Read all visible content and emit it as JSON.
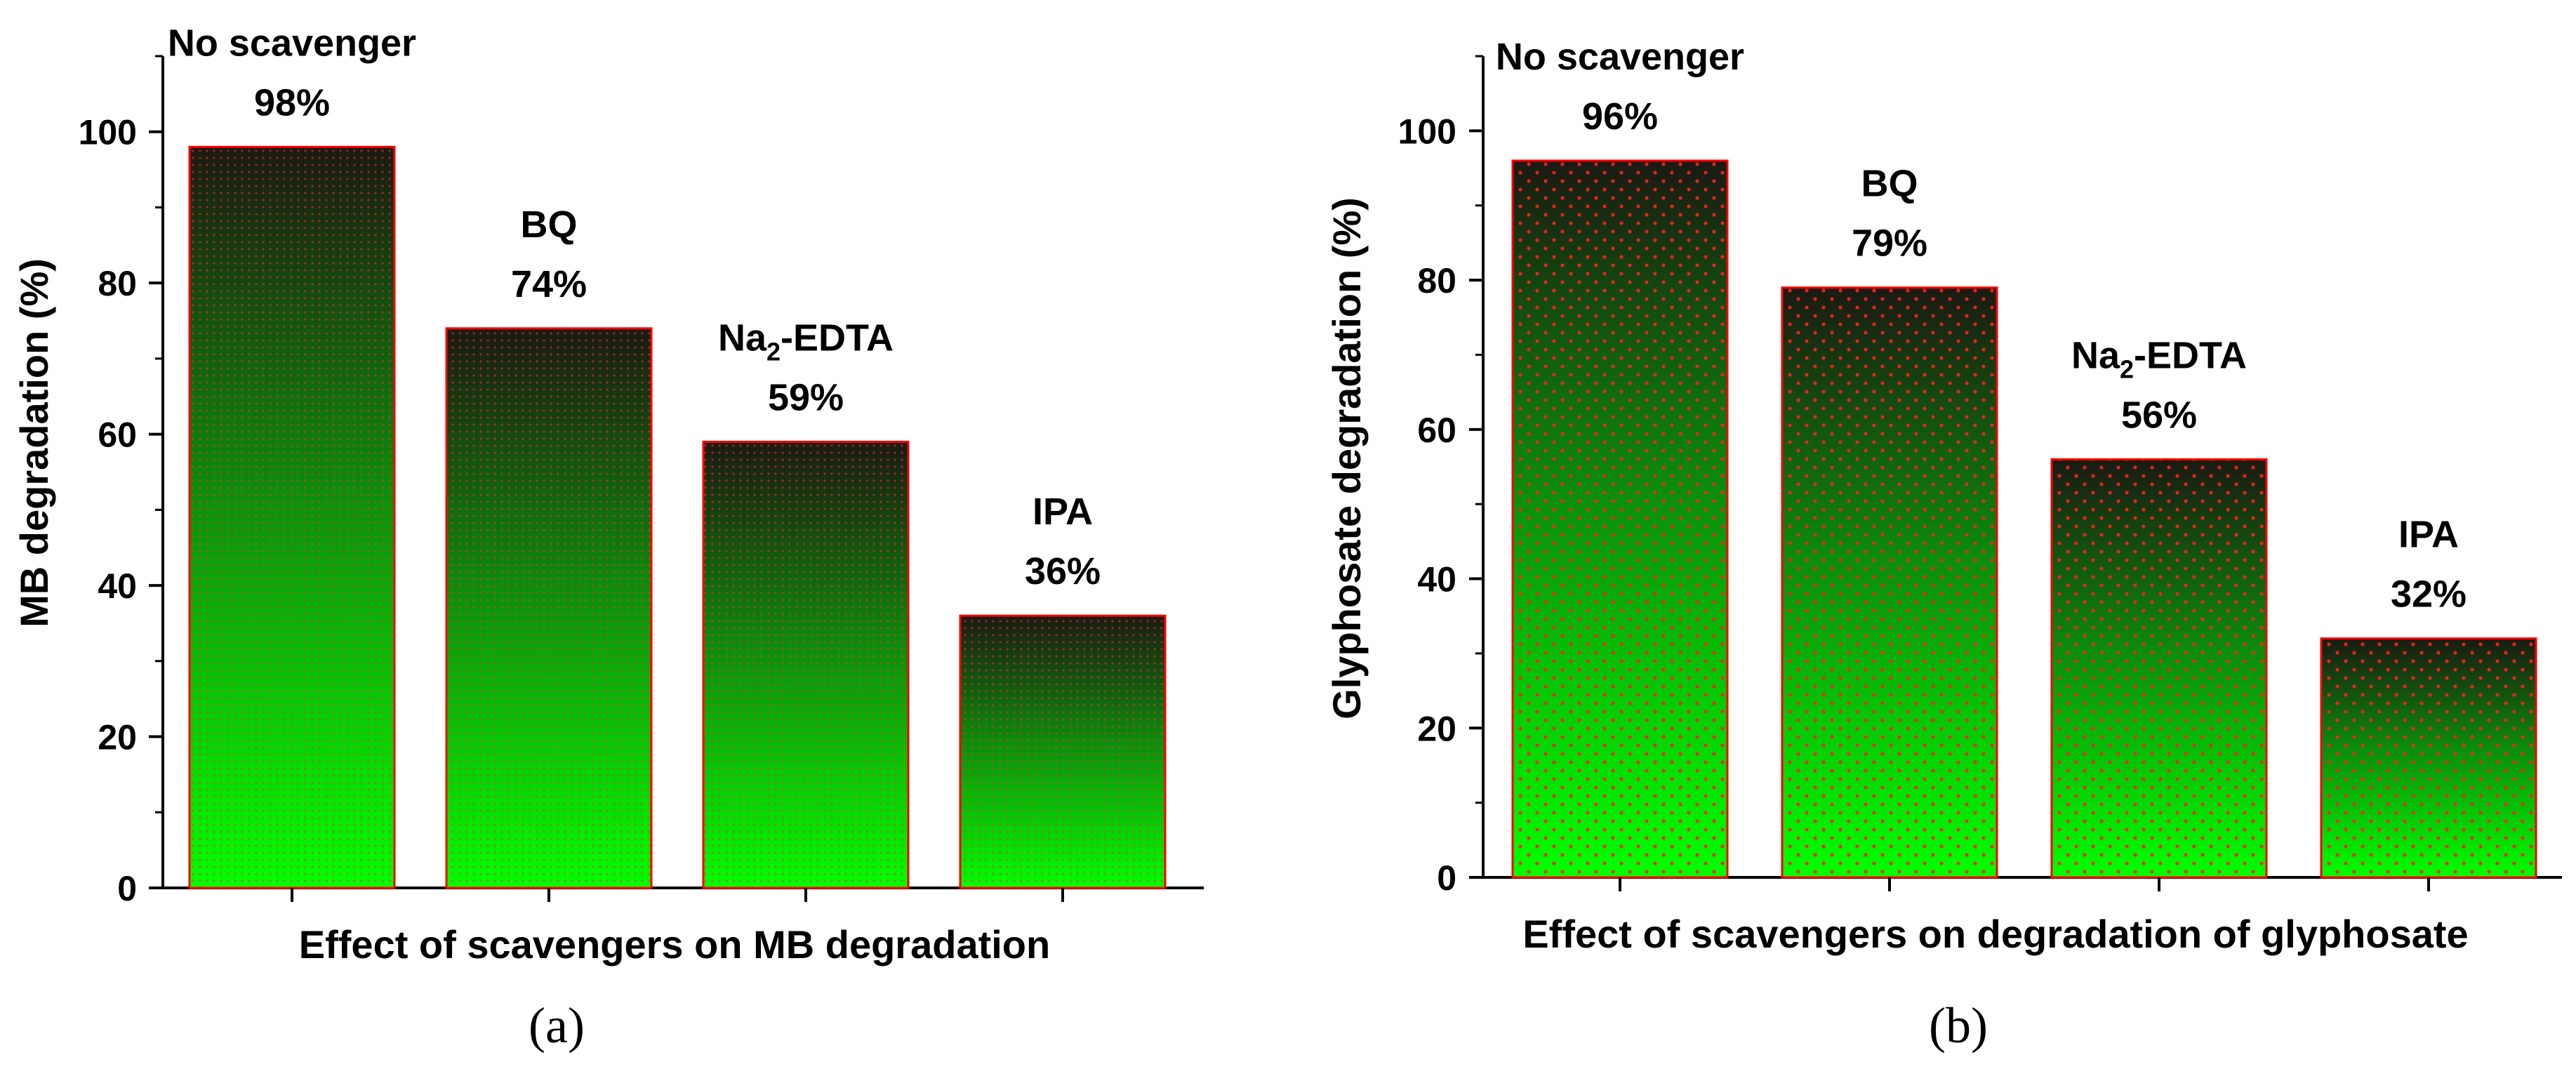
{
  "chart_data": [
    {
      "type": "bar",
      "panel": "(a)",
      "xlabel": "Effect of scavengers on MB degradation",
      "ylabel": "MB degradation (%)",
      "ylim": [
        0,
        110
      ],
      "yticks": [
        0,
        20,
        40,
        60,
        80,
        100
      ],
      "yticklabels": [
        "0",
        "20",
        "40",
        "60",
        "80",
        "100"
      ],
      "grid": false,
      "categories": [
        "No scavenger",
        "BQ",
        "Na2-EDTA",
        "IPA"
      ],
      "values": [
        98,
        74,
        59,
        36
      ],
      "value_labels": [
        "98%",
        "74%",
        "59%",
        "36%"
      ]
    },
    {
      "type": "bar",
      "panel": "(b)",
      "xlabel": "Effect of scavengers on degradation of glyphosate",
      "ylabel": "Glyphosate degradation (%)",
      "ylim": [
        0,
        110
      ],
      "yticks": [
        0,
        20,
        40,
        60,
        80,
        100
      ],
      "yticklabels": [
        "0",
        "20",
        "40",
        "60",
        "80",
        "100"
      ],
      "grid": false,
      "categories": [
        "No scavenger",
        "BQ",
        "Na2-EDTA",
        "IPA"
      ],
      "values": [
        96,
        79,
        56,
        32
      ],
      "value_labels": [
        "96%",
        "79%",
        "56%",
        "32%"
      ]
    }
  ],
  "colors": {
    "bar_top": "#1a1a12",
    "bar_mid": "#0c8a0c",
    "bar_bottom": "#00ff00",
    "bar_edge": "#ff0000",
    "axis": "#000000"
  }
}
